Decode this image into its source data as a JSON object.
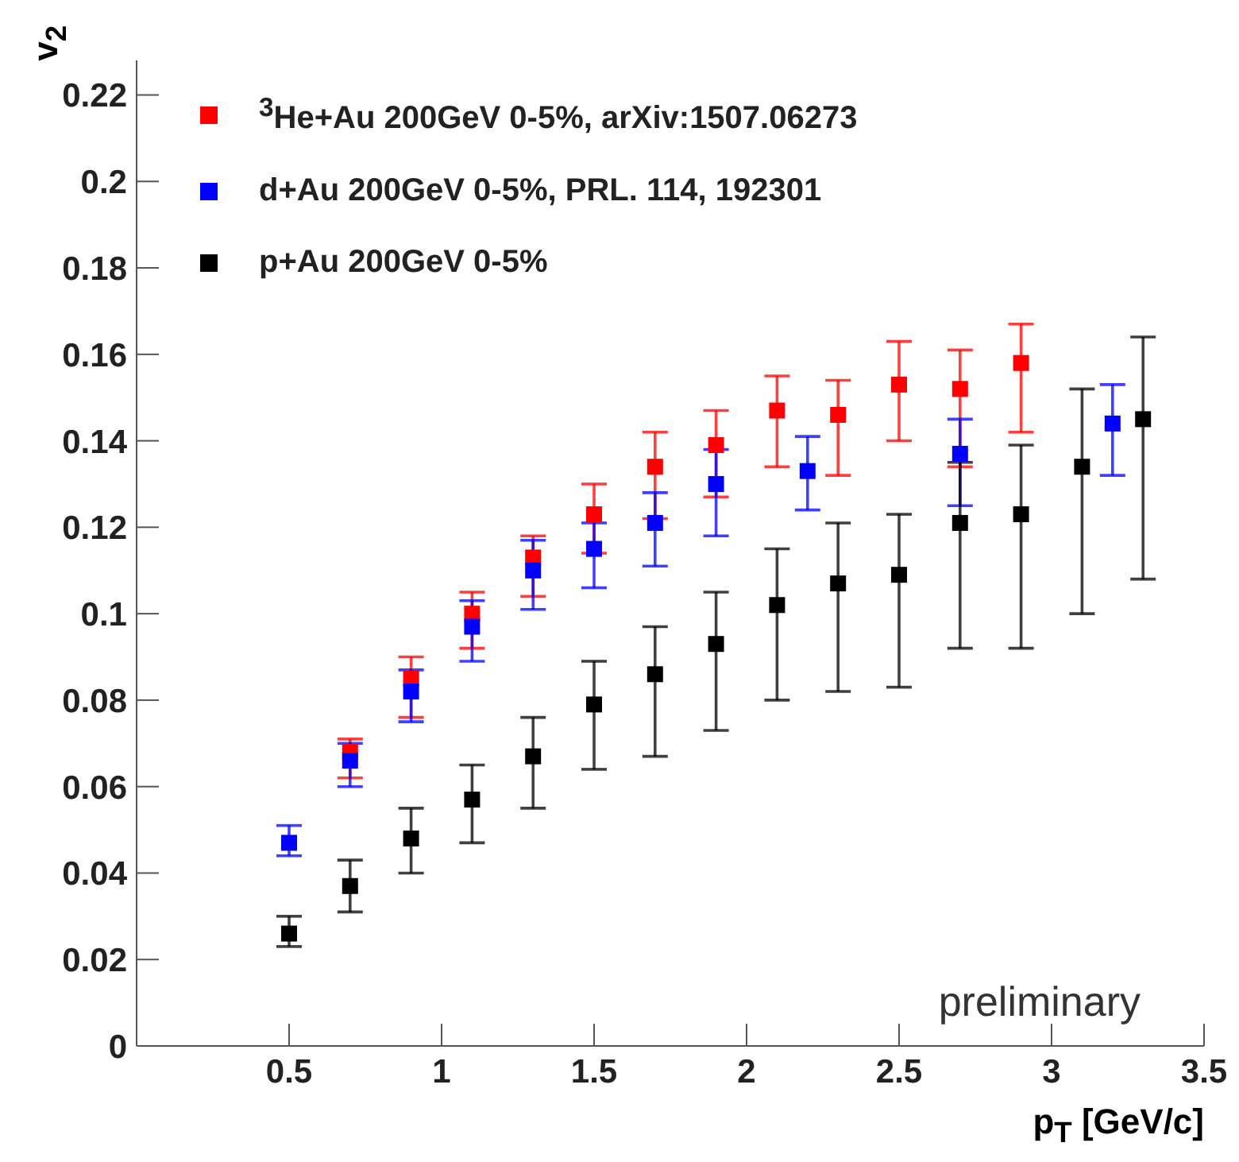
{
  "chart_data": {
    "type": "scatter",
    "xlabel": "p$_{T}$ [GeV/c]",
    "ylabel": "v$_{2}$",
    "xlim": [
      0,
      3.5
    ],
    "xticks": [
      0.5,
      1,
      1.5,
      2,
      2.5,
      3,
      3.5
    ],
    "ylim": [
      0,
      0.228
    ],
    "yticks": [
      0,
      0.02,
      0.04,
      0.06,
      0.08,
      0.1,
      0.12,
      0.14,
      0.16,
      0.18,
      0.2,
      0.22
    ],
    "legend": "top left",
    "marker": "square",
    "grid": false,
    "annotations": [
      "preliminary"
    ],
    "series": [
      {
        "name": "$^{3}$He+Au 200GeV 0-5%, arXiv:1507.06273",
        "color": "#ff0000",
        "x": [
          0.7,
          0.9,
          1.1,
          1.3,
          1.5,
          1.7,
          1.9,
          2.1,
          2.3,
          2.5,
          2.7,
          2.9
        ],
        "values": [
          0.068,
          0.085,
          0.1,
          0.113,
          0.123,
          0.134,
          0.139,
          0.147,
          0.146,
          0.153,
          0.152,
          0.158
        ],
        "errors": [
          [
            0.062,
            0.071
          ],
          [
            0.076,
            0.09
          ],
          [
            0.092,
            0.105
          ],
          [
            0.104,
            0.118
          ],
          [
            0.114,
            0.13
          ],
          [
            0.122,
            0.142
          ],
          [
            0.127,
            0.147
          ],
          [
            0.134,
            0.155
          ],
          [
            0.132,
            0.154
          ],
          [
            0.14,
            0.163
          ],
          [
            0.134,
            0.161
          ],
          [
            0.142,
            0.167
          ]
        ]
      },
      {
        "name": "d+Au 200GeV 0-5%, PRL. 114, 192301",
        "color": "#0000ff",
        "x": [
          0.5,
          0.7,
          0.9,
          1.1,
          1.3,
          1.5,
          1.7,
          1.9,
          2.2,
          2.7,
          3.2
        ],
        "values": [
          0.047,
          0.066,
          0.082,
          0.097,
          0.11,
          0.115,
          0.121,
          0.13,
          0.133,
          0.137,
          0.144
        ],
        "errors": [
          [
            0.044,
            0.051
          ],
          [
            0.06,
            0.07
          ],
          [
            0.075,
            0.087
          ],
          [
            0.089,
            0.103
          ],
          [
            0.101,
            0.117
          ],
          [
            0.106,
            0.121
          ],
          [
            0.111,
            0.128
          ],
          [
            0.118,
            0.138
          ],
          [
            0.124,
            0.141
          ],
          [
            0.125,
            0.145
          ],
          [
            0.132,
            0.153
          ]
        ]
      },
      {
        "name": "p+Au 200GeV 0-5%",
        "color": "#000000",
        "x": [
          0.5,
          0.7,
          0.9,
          1.1,
          1.3,
          1.5,
          1.7,
          1.9,
          2.1,
          2.3,
          2.5,
          2.7,
          2.9,
          3.1,
          3.3
        ],
        "values": [
          0.026,
          0.037,
          0.048,
          0.057,
          0.067,
          0.079,
          0.086,
          0.093,
          0.102,
          0.107,
          0.109,
          0.121,
          0.123,
          0.134,
          0.145
        ],
        "errors": [
          [
            0.023,
            0.03
          ],
          [
            0.031,
            0.043
          ],
          [
            0.04,
            0.055
          ],
          [
            0.047,
            0.065
          ],
          [
            0.055,
            0.076
          ],
          [
            0.064,
            0.089
          ],
          [
            0.067,
            0.097
          ],
          [
            0.073,
            0.105
          ],
          [
            0.08,
            0.115
          ],
          [
            0.082,
            0.121
          ],
          [
            0.083,
            0.123
          ],
          [
            0.092,
            0.135
          ],
          [
            0.092,
            0.139
          ],
          [
            0.1,
            0.152
          ],
          [
            0.108,
            0.164
          ]
        ]
      }
    ]
  }
}
